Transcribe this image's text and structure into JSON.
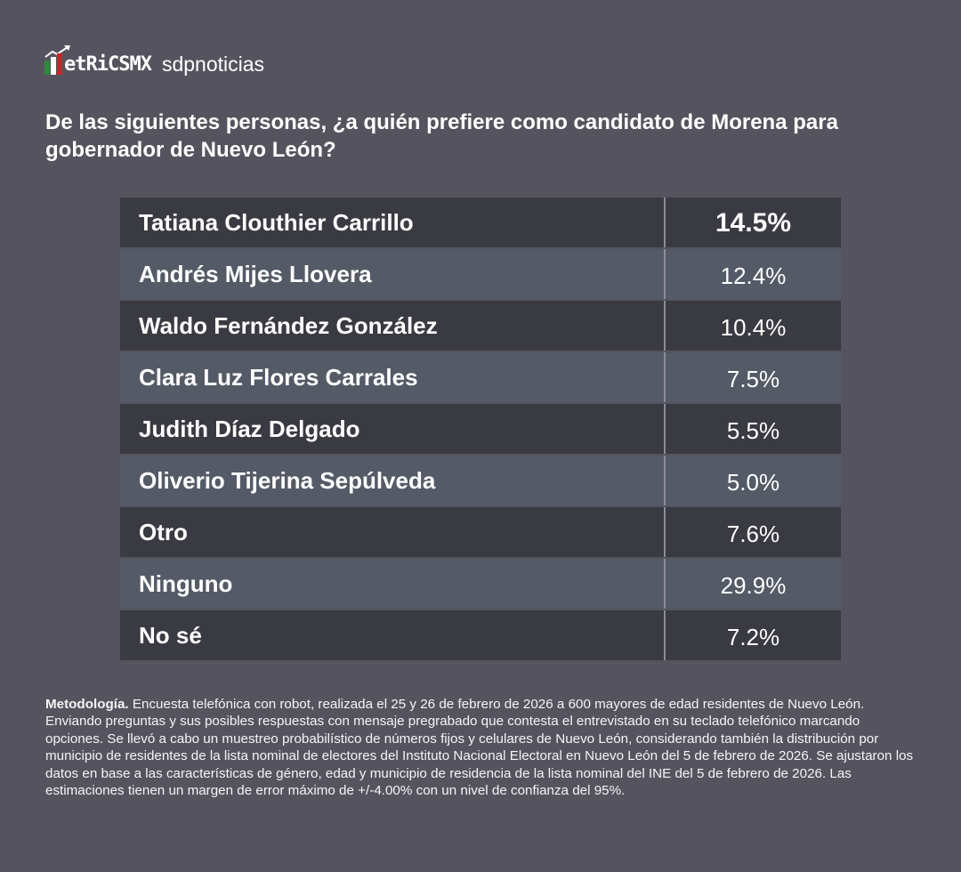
{
  "header": {
    "logo_text": "etRiCSMX",
    "logo_brand": "MetricsMX",
    "partner": "sdpnoticias"
  },
  "title": "De las siguientes personas, ¿a quién prefiere como candidato de Morena para gobernador de Nuevo León?",
  "colors": {
    "background": "#55545e",
    "row_dark": "#393a42",
    "row_light": "#545a66",
    "logo_green": "#2e8b3c",
    "logo_white": "#ffffff",
    "logo_red": "#c8262b"
  },
  "chart_data": {
    "type": "table",
    "title": "De las siguientes personas, ¿a quién prefiere como candidato de Morena para gobernador de Nuevo León?",
    "rows": [
      {
        "label": "Tatiana Clouthier Carrillo",
        "value": "14.5%"
      },
      {
        "label": "Andrés Mijes Llovera",
        "value": "12.4%"
      },
      {
        "label": "Waldo Fernández González",
        "value": "10.4%"
      },
      {
        "label": "Clara Luz Flores Carrales",
        "value": "7.5%"
      },
      {
        "label": "Judith Díaz Delgado",
        "value": "5.5%"
      },
      {
        "label": "Oliverio Tijerina Sepúlveda",
        "value": "5.0%"
      },
      {
        "label": "Otro",
        "value": "7.6%"
      },
      {
        "label": "Ninguno",
        "value": "29.9%"
      },
      {
        "label": "No sé",
        "value": "7.2%"
      }
    ]
  },
  "methodology": {
    "label": "Metodología.",
    "text": " Encuesta telefónica con robot, realizada el 25 y 26 de febrero de 2026 a 600 mayores de edad residentes de Nuevo León. Enviando preguntas y sus posibles respuestas con mensaje pregrabado que contesta el entrevistado en su teclado telefónico marcando opciones. Se llevó a cabo un muestreo probabilístico de números fijos y celulares de Nuevo León, considerando también la distribución por municipio de residentes de la lista nominal de electores del Instituto Nacional Electoral en Nuevo León del 5 de febrero de 2026. Se ajustaron los datos en base a las características de género, edad y municipio de residencia de la lista nominal del INE del 5 de febrero de 2026. Las estimaciones tienen un margen de error máximo de +/-4.00% con un nivel de confianza del 95%."
  }
}
